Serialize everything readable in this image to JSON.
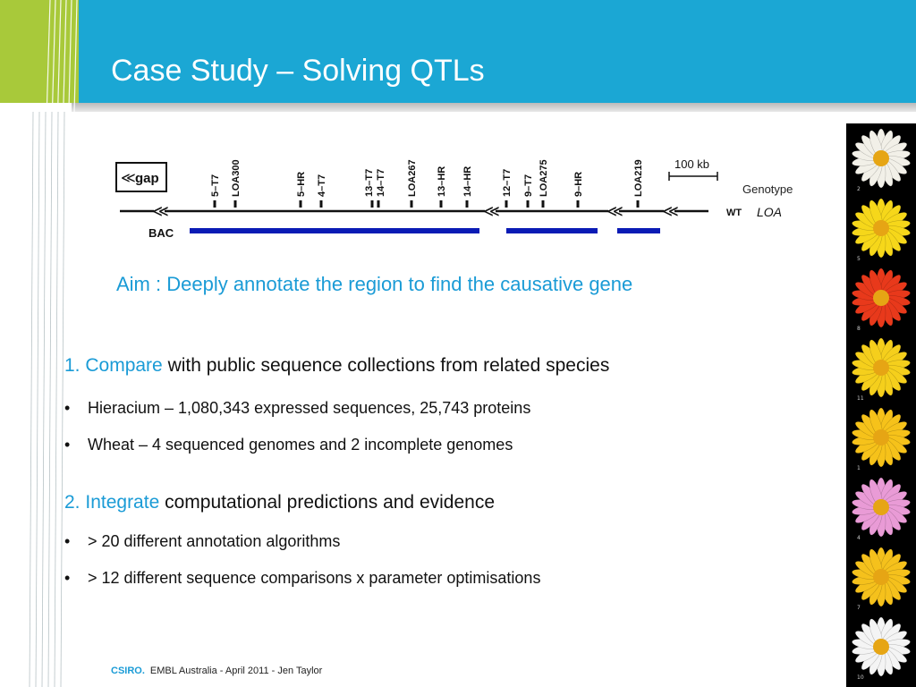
{
  "slide": {
    "title": "Case Study – Solving QTLs",
    "aim": "Aim : Deeply annotate the region to find the causative gene",
    "sections": [
      {
        "number": "1.",
        "keyword": "Compare",
        "rest": " with public sequence collections from related species",
        "bullets": [
          "Hieracium – 1,080,343 expressed sequences, 25,743 proteins",
          "Wheat –  4 sequenced genomes and 2 incomplete genomes"
        ]
      },
      {
        "number": "2.",
        "keyword": "Integrate",
        "rest": " computational predictions and evidence",
        "bullets": [
          "> 20 different annotation algorithms",
          "> 12 different sequence comparisons x parameter optimisations"
        ]
      }
    ],
    "bullet_char": "•"
  },
  "diagram": {
    "gap_label": "gap",
    "scale_label": "100 kb",
    "genotype_label": "Genotype",
    "wt_label": "WT",
    "loa_label": "LOA",
    "bac_label": "BAC",
    "markers": [
      "5–T7",
      "LOA300",
      "5–HR",
      "4–T7",
      "13–T7",
      "14–T7",
      "LOA267",
      "13–HR",
      "14–HR",
      "12–T7",
      "9–T7",
      "LOA275",
      "9–HR",
      "LOA219"
    ],
    "colors": {
      "bac_bar": "#0a1bb5",
      "line": "#111111"
    }
  },
  "flowers": {
    "numbers": [
      "2",
      "5",
      "8",
      "11",
      "1",
      "4",
      "7",
      "10"
    ],
    "colors": [
      "#f2f0e8",
      "#f6d71a",
      "#e8391b",
      "#f5cf1c",
      "#f6c21a",
      "#e99bd6",
      "#f5c11c",
      "#f4f4f4"
    ]
  },
  "footer": {
    "brand": "CSIRO.",
    "text": "EMBL Australia - April 2011 - Jen Taylor"
  },
  "theme": {
    "header_blue": "#1ba7d4",
    "lime": "#a8c93a",
    "accent_blue": "#1a9bd6"
  }
}
